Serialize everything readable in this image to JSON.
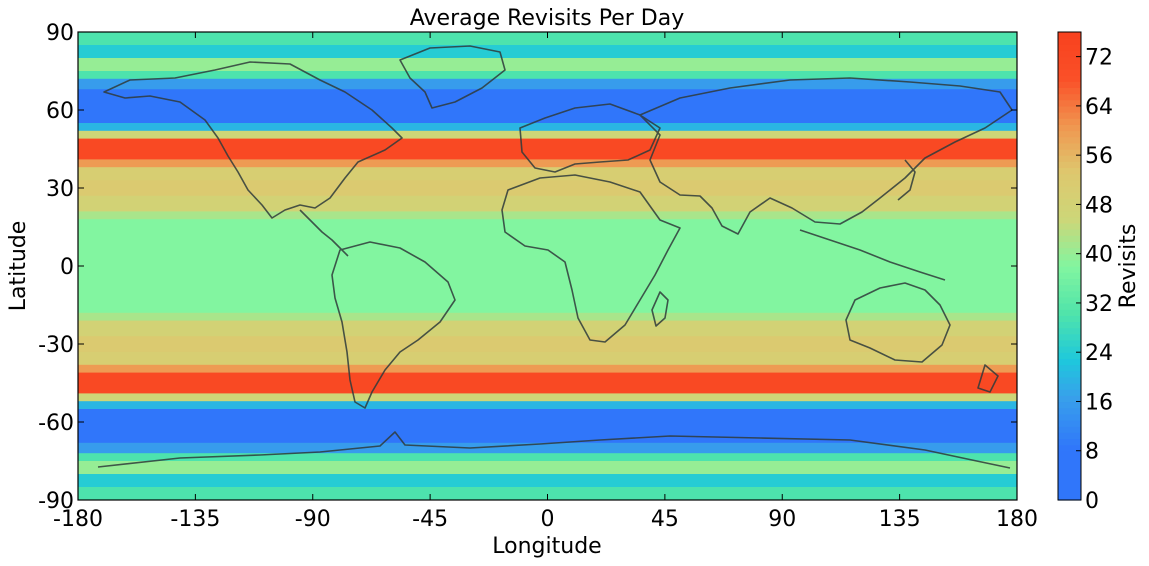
{
  "chart_data": {
    "type": "heatmap",
    "title": "Average Revisits Per Day",
    "xlabel": "Longitude",
    "ylabel": "Latitude",
    "xlim": [
      -180,
      180
    ],
    "ylim": [
      -90,
      90
    ],
    "x_ticks": [
      "-180",
      "-135",
      "-90",
      "-45",
      "0",
      "45",
      "90",
      "135",
      "180"
    ],
    "x_tick_values": [
      -180,
      -135,
      -90,
      -45,
      0,
      45,
      90,
      135,
      180
    ],
    "y_ticks": [
      "90",
      "60",
      "30",
      "0",
      "-30",
      "-60",
      "-90"
    ],
    "y_tick_values": [
      90,
      60,
      30,
      0,
      -30,
      -60,
      -90
    ],
    "colorbar": {
      "label": "Revisits",
      "range": [
        0,
        76
      ],
      "ticks": [
        "0",
        "8",
        "16",
        "24",
        "32",
        "40",
        "48",
        "56",
        "64",
        "72"
      ],
      "tick_values": [
        0,
        8,
        16,
        24,
        32,
        40,
        48,
        56,
        64,
        72
      ],
      "colormap": "jet"
    },
    "latitude_bands": [
      {
        "lat": [
          85,
          90
        ],
        "value": 30
      },
      {
        "lat": [
          80,
          85
        ],
        "value": 24
      },
      {
        "lat": [
          75,
          80
        ],
        "value": 40
      },
      {
        "lat": [
          72,
          75
        ],
        "value": 30
      },
      {
        "lat": [
          68,
          72
        ],
        "value": 16
      },
      {
        "lat": [
          55,
          68
        ],
        "value": 8
      },
      {
        "lat": [
          52,
          55
        ],
        "value": 20
      },
      {
        "lat": [
          49,
          52
        ],
        "value": 46
      },
      {
        "lat": [
          41,
          49
        ],
        "value": 72
      },
      {
        "lat": [
          38,
          41
        ],
        "value": 60
      },
      {
        "lat": [
          33,
          38
        ],
        "value": 50
      },
      {
        "lat": [
          27,
          33
        ],
        "value": 52
      },
      {
        "lat": [
          21,
          27
        ],
        "value": 48
      },
      {
        "lat": [
          18,
          21
        ],
        "value": 42
      },
      {
        "lat": [
          -18,
          18
        ],
        "value": 38
      },
      {
        "lat": [
          -21,
          -18
        ],
        "value": 42
      },
      {
        "lat": [
          -27,
          -21
        ],
        "value": 48
      },
      {
        "lat": [
          -33,
          -27
        ],
        "value": 52
      },
      {
        "lat": [
          -38,
          -33
        ],
        "value": 50
      },
      {
        "lat": [
          -41,
          -38
        ],
        "value": 60
      },
      {
        "lat": [
          -49,
          -41
        ],
        "value": 72
      },
      {
        "lat": [
          -52,
          -49
        ],
        "value": 46
      },
      {
        "lat": [
          -55,
          -52
        ],
        "value": 20
      },
      {
        "lat": [
          -68,
          -55
        ],
        "value": 8
      },
      {
        "lat": [
          -72,
          -68
        ],
        "value": 16
      },
      {
        "lat": [
          -75,
          -72
        ],
        "value": 30
      },
      {
        "lat": [
          -80,
          -75
        ],
        "value": 40
      },
      {
        "lat": [
          -85,
          -80
        ],
        "value": 24
      },
      {
        "lat": [
          -90,
          -85
        ],
        "value": 30
      }
    ],
    "grid": false,
    "background_overlay": "world-coastlines"
  }
}
